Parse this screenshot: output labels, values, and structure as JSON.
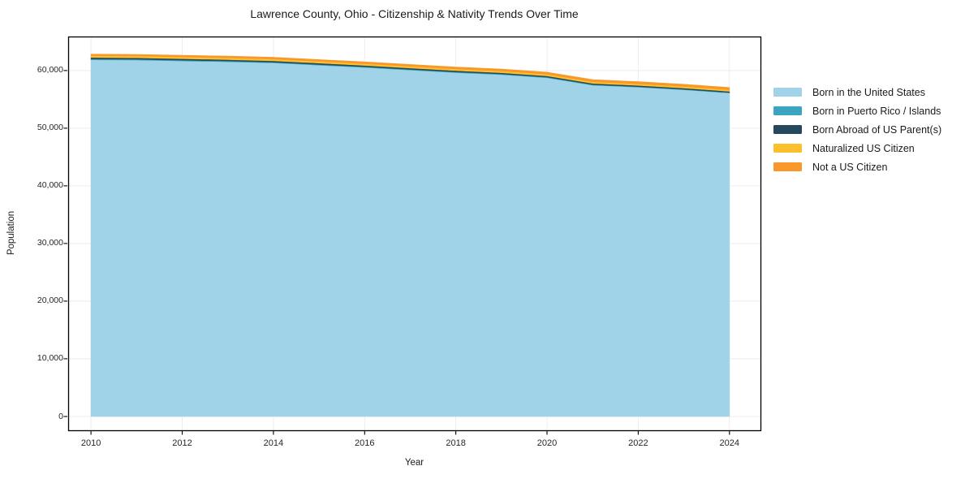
{
  "title": "Lawrence County, Ohio - Citizenship & Nativity Trends Over Time",
  "chart_data": {
    "type": "area",
    "stacked": true,
    "title": "Lawrence County, Ohio - Citizenship & Nativity Trends Over Time",
    "xlabel": "Year",
    "ylabel": "Population",
    "x": [
      2010,
      2011,
      2012,
      2013,
      2014,
      2015,
      2016,
      2017,
      2018,
      2019,
      2020,
      2021,
      2022,
      2023,
      2024
    ],
    "series": [
      {
        "id": "born-us",
        "name": "Born in the United States",
        "color": "#a0d2e8",
        "values": [
          61860,
          61810,
          61660,
          61515,
          61320,
          60925,
          60530,
          60085,
          59640,
          59295,
          58750,
          57460,
          57115,
          56665,
          56115
        ]
      },
      {
        "id": "born-pr-islands",
        "name": "Born in Puerto Rico / Islands",
        "color": "#3aa5c1",
        "values": [
          150,
          150,
          145,
          140,
          135,
          130,
          125,
          120,
          115,
          110,
          105,
          100,
          95,
          90,
          85
        ]
      },
      {
        "id": "born-abroad",
        "name": "Born Abroad of US Parent(s)",
        "color": "#25485c",
        "values": [
          250,
          250,
          250,
          245,
          240,
          235,
          230,
          230,
          225,
          220,
          215,
          210,
          210,
          205,
          200
        ]
      },
      {
        "id": "naturalized",
        "name": "Naturalized US Citizen",
        "color": "#fcc02c",
        "values": [
          320,
          320,
          315,
          315,
          310,
          310,
          305,
          305,
          300,
          300,
          295,
          290,
          290,
          285,
          280
        ]
      },
      {
        "id": "not-citizen",
        "name": "Not a US Citizen",
        "color": "#f8982a",
        "values": [
          270,
          270,
          280,
          285,
          300,
          305,
          315,
          320,
          330,
          335,
          350,
          360,
          360,
          370,
          380
        ]
      }
    ],
    "xlim": [
      2009.5,
      2024.68
    ],
    "ylim": [
      -2400,
      65900
    ],
    "x_ticks": [
      2010,
      2012,
      2014,
      2016,
      2018,
      2020,
      2022,
      2024
    ],
    "x_tick_labels": [
      "2010",
      "2012",
      "2014",
      "2016",
      "2018",
      "2020",
      "2022",
      "2024"
    ],
    "y_ticks": [
      0,
      10000,
      20000,
      30000,
      40000,
      50000,
      60000
    ],
    "y_tick_labels": [
      "0",
      "10,000",
      "20,000",
      "30,000",
      "40,000",
      "50,000",
      "60,000"
    ],
    "grid": true,
    "grid_color": "#ececec",
    "frame_color": "#000000",
    "legend_position": "right"
  }
}
